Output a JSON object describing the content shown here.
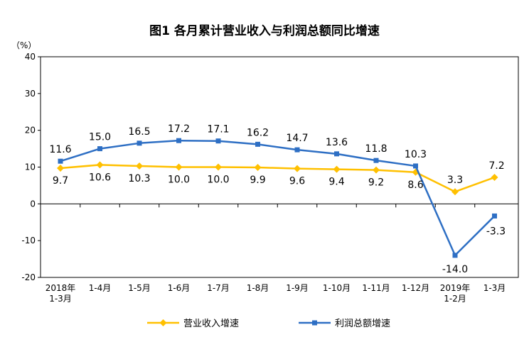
{
  "chart_data": {
    "type": "line",
    "title": "图1  各月累计营业收入与利润总额同比增速",
    "unit": "（%）",
    "x": [
      "2018年1-3月",
      "1-4月",
      "1-5月",
      "1-6月",
      "1-7月",
      "1-8月",
      "1-9月",
      "1-10月",
      "1-11月",
      "1-12月",
      "2019年1-2月",
      "1-3月"
    ],
    "x_tick_lines": [
      [
        "2018年",
        "1-3月"
      ],
      [
        "1-4月"
      ],
      [
        "1-5月"
      ],
      [
        "1-6月"
      ],
      [
        "1-7月"
      ],
      [
        "1-8月"
      ],
      [
        "1-9月"
      ],
      [
        "1-10月"
      ],
      [
        "1-11月"
      ],
      [
        "1-12月"
      ],
      [
        "2019年",
        "1-2月"
      ],
      [
        "1-3月"
      ]
    ],
    "ylim": [
      -20,
      40
    ],
    "yticks": [
      -20,
      -10,
      0,
      10,
      20,
      30,
      40
    ],
    "grid": false,
    "legend_position": "bottom",
    "series": [
      {
        "name": "营业收入增速",
        "color": "#FFC000",
        "marker": "diamond",
        "values": [
          9.7,
          10.6,
          10.3,
          10.0,
          10.0,
          9.9,
          9.6,
          9.4,
          9.2,
          8.6,
          3.3,
          7.2
        ],
        "labels": [
          "9.7",
          "10.6",
          "10.3",
          "10.0",
          "10.0",
          "9.9",
          "9.6",
          "9.4",
          "9.2",
          "8.6",
          "3.3",
          "7.2"
        ]
      },
      {
        "name": "利润总额增速",
        "color": "#2E6FC4",
        "marker": "square",
        "values": [
          11.6,
          15.0,
          16.5,
          17.2,
          17.1,
          16.2,
          14.7,
          13.6,
          11.8,
          10.3,
          -14.0,
          -3.3
        ],
        "labels": [
          "11.6",
          "15.0",
          "16.5",
          "17.2",
          "17.1",
          "16.2",
          "14.7",
          "13.6",
          "11.8",
          "10.3",
          "-14.0",
          "-3.3"
        ]
      }
    ]
  }
}
